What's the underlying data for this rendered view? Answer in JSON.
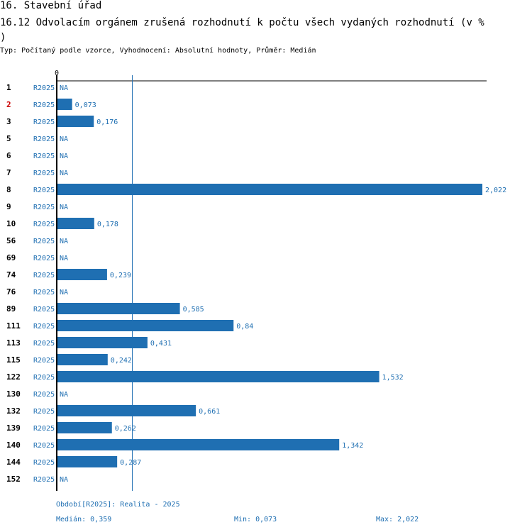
{
  "title": "16. Stavební úřad",
  "subtitle_line1": "16.12 Odvolacím orgánem zrušená rozhodnutí k počtu všech vydaných rozhodnutí (v %",
  "subtitle_line2": ")",
  "meta": "Typ: Počítaný podle vzorce, Vyhodnocení: Absolutní hodnoty, Průměr: Medián",
  "chart_data": {
    "type": "bar",
    "orientation": "horizontal",
    "axis_zero_label": "0",
    "xlim": [
      0,
      2.022
    ],
    "median_line_value": 0.359,
    "categories": [
      "1",
      "2",
      "3",
      "5",
      "6",
      "7",
      "8",
      "9",
      "10",
      "56",
      "69",
      "74",
      "76",
      "89",
      "111",
      "113",
      "115",
      "122",
      "130",
      "132",
      "139",
      "140",
      "144",
      "152"
    ],
    "highlighted_categories": [
      "2"
    ],
    "series": [
      {
        "name": "R2025",
        "values": [
          null,
          0.073,
          0.176,
          null,
          null,
          null,
          2.022,
          null,
          0.178,
          null,
          null,
          0.239,
          null,
          0.585,
          0.84,
          0.431,
          0.242,
          1.532,
          null,
          0.661,
          0.262,
          1.342,
          0.287,
          null
        ],
        "labels": [
          "NA",
          "0,073",
          "0,176",
          "NA",
          "NA",
          "NA",
          "2,022",
          "NA",
          "0,178",
          "NA",
          "NA",
          "0,239",
          "NA",
          "0,585",
          "0,84",
          "0,431",
          "0,242",
          "1,532",
          "NA",
          "0,661",
          "0,262",
          "1,342",
          "0,287",
          "NA"
        ]
      }
    ]
  },
  "footer": {
    "period": "Období[R2025]: Realita - 2025",
    "median": "Medián: 0,359",
    "min": "Min: 0,073",
    "max": "Max: 2,022"
  },
  "colors": {
    "bar": "#1f6fb2",
    "label": "#1f6fb2",
    "highlight": "#cc0000",
    "axis": "#000000"
  }
}
